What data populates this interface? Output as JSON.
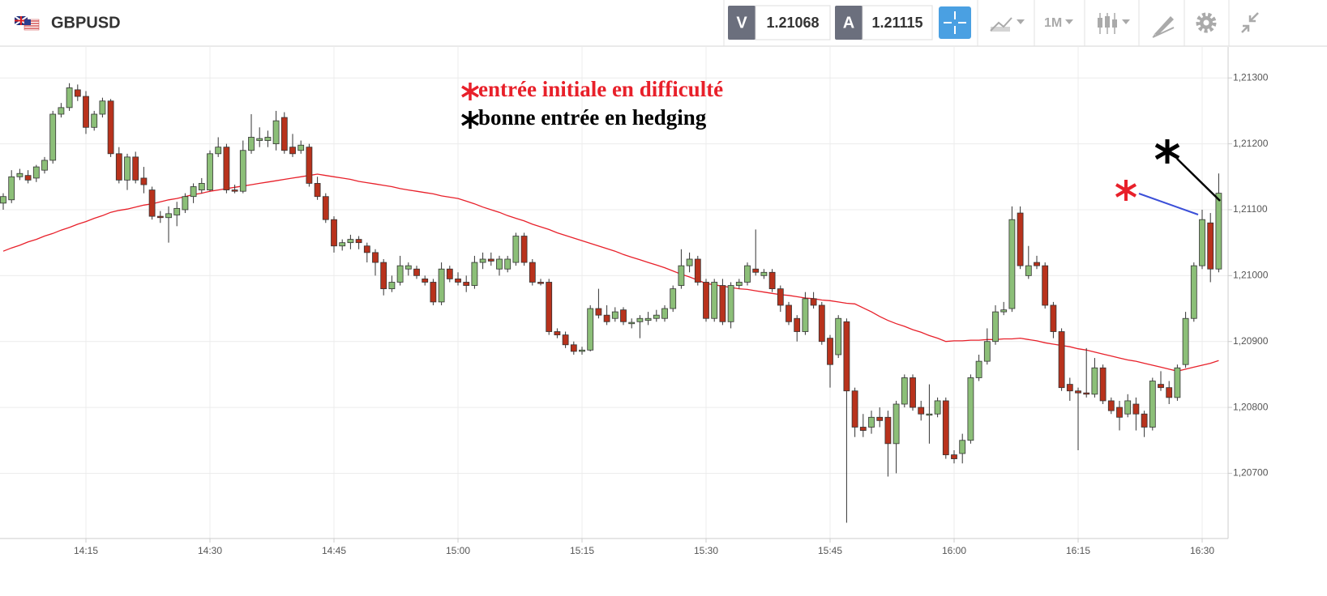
{
  "toolbar": {
    "symbol": "GBPUSD",
    "bid_tag": "V",
    "bid": "1.21068",
    "ask_tag": "A",
    "ask": "1.21115",
    "timeframe": "1M"
  },
  "chart_data": {
    "type": "candlestick",
    "annotations": [
      {
        "text": "entrée initiale en difficulté",
        "color": "#e8202a"
      },
      {
        "text": "bonne entrée en hedging",
        "color": "#000000"
      }
    ],
    "up_color": "#8cbf78",
    "down_color": "#b8321c",
    "ylim": [
      1.20601,
      1.21347
    ],
    "yticks": [
      {
        "value": 1.207,
        "label": "1,20700"
      },
      {
        "value": 1.208,
        "label": "1,20800"
      },
      {
        "value": 1.209,
        "label": "1,20900"
      },
      {
        "value": 1.21,
        "label": "1,21000"
      },
      {
        "value": 1.211,
        "label": "1,21100"
      },
      {
        "value": 1.212,
        "label": "1,21200"
      },
      {
        "value": 1.213,
        "label": "1,21300"
      }
    ],
    "grid": true,
    "categories": [
      null,
      null,
      null,
      null,
      null,
      null,
      null,
      null,
      null,
      null,
      "14:15",
      null,
      null,
      null,
      null,
      null,
      null,
      null,
      null,
      null,
      null,
      null,
      null,
      null,
      null,
      "14:30",
      null,
      null,
      null,
      null,
      null,
      null,
      null,
      null,
      null,
      null,
      null,
      null,
      null,
      null,
      "14:45",
      null,
      null,
      null,
      null,
      null,
      null,
      null,
      null,
      null,
      null,
      null,
      null,
      null,
      null,
      "15:00",
      null,
      null,
      null,
      null,
      null,
      null,
      null,
      null,
      null,
      null,
      null,
      null,
      null,
      null,
      "15:15",
      null,
      null,
      null,
      null,
      null,
      null,
      null,
      null,
      null,
      null,
      null,
      null,
      null,
      null,
      "15:30",
      null,
      null,
      null,
      null,
      null,
      null,
      null,
      null,
      null,
      null,
      null,
      null,
      null,
      null,
      "15:45",
      null,
      null,
      null,
      null,
      null,
      null,
      null,
      null,
      null,
      null,
      null,
      null,
      null,
      null,
      "16:00",
      null,
      null,
      null,
      null,
      null,
      null,
      null,
      null,
      null,
      null,
      null,
      null,
      null,
      null,
      "16:15",
      null,
      null,
      null,
      null,
      null,
      null,
      null,
      null,
      null,
      null,
      null,
      null,
      null,
      null,
      "16:30",
      null,
      null
    ],
    "ohlc": [
      [
        1.2111,
        1.21125,
        1.211,
        1.2112
      ],
      [
        1.21115,
        1.2116,
        1.2111,
        1.2115
      ],
      [
        1.2115,
        1.21162,
        1.21145,
        1.21155
      ],
      [
        1.21152,
        1.2116,
        1.2114,
        1.21145
      ],
      [
        1.21148,
        1.21168,
        1.21142,
        1.21165
      ],
      [
        1.2116,
        1.2118,
        1.21155,
        1.21175
      ],
      [
        1.21175,
        1.2125,
        1.2117,
        1.21245
      ],
      [
        1.21245,
        1.21262,
        1.2124,
        1.21255
      ],
      [
        1.21255,
        1.21292,
        1.2125,
        1.21285
      ],
      [
        1.21282,
        1.2129,
        1.21265,
        1.21272
      ],
      [
        1.21272,
        1.2128,
        1.21215,
        1.21225
      ],
      [
        1.21225,
        1.2125,
        1.2122,
        1.21245
      ],
      [
        1.21245,
        1.2127,
        1.2124,
        1.21265
      ],
      [
        1.21265,
        1.21268,
        1.2118,
        1.21185
      ],
      [
        1.21185,
        1.21195,
        1.2114,
        1.21145
      ],
      [
        1.21145,
        1.21185,
        1.2113,
        1.2118
      ],
      [
        1.2118,
        1.21188,
        1.2114,
        1.21145
      ],
      [
        1.21148,
        1.21165,
        1.21125,
        1.21138
      ],
      [
        1.2113,
        1.21135,
        1.21085,
        1.2109
      ],
      [
        1.2109,
        1.21098,
        1.2108,
        1.21088
      ],
      [
        1.21088,
        1.21105,
        1.2105,
        1.21094
      ],
      [
        1.21092,
        1.21112,
        1.21075,
        1.21102
      ],
      [
        1.211,
        1.21125,
        1.21095,
        1.2112
      ],
      [
        1.2112,
        1.2114,
        1.2111,
        1.21135
      ],
      [
        1.2113,
        1.21148,
        1.21125,
        1.2114
      ],
      [
        1.2113,
        1.2119,
        1.21128,
        1.21185
      ],
      [
        1.21185,
        1.2121,
        1.2118,
        1.21195
      ],
      [
        1.21195,
        1.212,
        1.21125,
        1.2113
      ],
      [
        1.2113,
        1.21138,
        1.21125,
        1.21128
      ],
      [
        1.21128,
        1.21205,
        1.21125,
        1.2119
      ],
      [
        1.2119,
        1.21245,
        1.21185,
        1.2121
      ],
      [
        1.21205,
        1.21225,
        1.21195,
        1.21208
      ],
      [
        1.21205,
        1.2122,
        1.21195,
        1.2121
      ],
      [
        1.212,
        1.2125,
        1.2119,
        1.21235
      ],
      [
        1.2124,
        1.21248,
        1.21185,
        1.2119
      ],
      [
        1.21195,
        1.21215,
        1.2118,
        1.21185
      ],
      [
        1.2119,
        1.21205,
        1.21185,
        1.21198
      ],
      [
        1.21195,
        1.212,
        1.21135,
        1.2114
      ],
      [
        1.2114,
        1.2115,
        1.21115,
        1.2112
      ],
      [
        1.2112,
        1.21125,
        1.2108,
        1.21085
      ],
      [
        1.21085,
        1.2109,
        1.21035,
        1.21045
      ],
      [
        1.21045,
        1.21055,
        1.21038,
        1.2105
      ],
      [
        1.2105,
        1.21062,
        1.2104,
        1.21055
      ],
      [
        1.21055,
        1.2106,
        1.2104,
        1.2105
      ],
      [
        1.21045,
        1.2105,
        1.2102,
        1.21035
      ],
      [
        1.21035,
        1.2104,
        1.21,
        1.2102
      ],
      [
        1.2102,
        1.21025,
        1.2097,
        1.2098
      ],
      [
        1.2098,
        1.21,
        1.20975,
        1.2099
      ],
      [
        1.2099,
        1.2103,
        1.20985,
        1.21015
      ],
      [
        1.2101,
        1.2102,
        1.21,
        1.21015
      ],
      [
        1.2101,
        1.21015,
        1.20995,
        1.21
      ],
      [
        1.20995,
        1.21,
        1.20985,
        1.2099
      ],
      [
        1.2099,
        1.20995,
        1.20955,
        1.2096
      ],
      [
        1.2096,
        1.2102,
        1.20955,
        1.2101
      ],
      [
        1.2101,
        1.21015,
        1.2099,
        1.20995
      ],
      [
        1.20995,
        1.21005,
        1.20985,
        1.2099
      ],
      [
        1.2099,
        1.21,
        1.20975,
        1.20985
      ],
      [
        1.20985,
        1.2103,
        1.2098,
        1.2102
      ],
      [
        1.2102,
        1.21035,
        1.2101,
        1.21025
      ],
      [
        1.21025,
        1.21035,
        1.21015,
        1.21022
      ],
      [
        1.2101,
        1.2103,
        1.21,
        1.21025
      ],
      [
        1.2101,
        1.2103,
        1.21005,
        1.21025
      ],
      [
        1.2102,
        1.21065,
        1.21015,
        1.2106
      ],
      [
        1.2106,
        1.21065,
        1.21015,
        1.2102
      ],
      [
        1.2102,
        1.21025,
        1.20985,
        1.2099
      ],
      [
        1.2099,
        1.20995,
        1.20985,
        1.20988
      ],
      [
        1.2099,
        1.20995,
        1.2091,
        1.20915
      ],
      [
        1.20915,
        1.2092,
        1.20905,
        1.2091
      ],
      [
        1.2091,
        1.20915,
        1.2089,
        1.20895
      ],
      [
        1.20895,
        1.209,
        1.2088,
        1.20885
      ],
      [
        1.20885,
        1.20892,
        1.2088,
        1.20887
      ],
      [
        1.20887,
        1.20955,
        1.20885,
        1.2095
      ],
      [
        1.2095,
        1.2098,
        1.20935,
        1.2094
      ],
      [
        1.2094,
        1.20955,
        1.20925,
        1.2093
      ],
      [
        1.20935,
        1.20952,
        1.2093,
        1.20945
      ],
      [
        1.20948,
        1.20952,
        1.20925,
        1.2093
      ],
      [
        1.20927,
        1.20935,
        1.2092,
        1.20929
      ],
      [
        1.2093,
        1.2094,
        1.20905,
        1.20935
      ],
      [
        1.20932,
        1.20945,
        1.20925,
        1.20935
      ],
      [
        1.20935,
        1.20948,
        1.2093,
        1.2094
      ],
      [
        1.20935,
        1.20955,
        1.2093,
        1.2095
      ],
      [
        1.2095,
        1.20985,
        1.20945,
        1.2098
      ],
      [
        1.20985,
        1.2104,
        1.2098,
        1.21015
      ],
      [
        1.21015,
        1.21035,
        1.21005,
        1.21025
      ],
      [
        1.21025,
        1.2103,
        1.20985,
        1.2099
      ],
      [
        1.2099,
        1.20995,
        1.2093,
        1.20935
      ],
      [
        1.20935,
        1.20995,
        1.2093,
        1.2099
      ],
      [
        1.20985,
        1.20995,
        1.20925,
        1.2093
      ],
      [
        1.2093,
        1.2099,
        1.2092,
        1.20985
      ],
      [
        1.20985,
        1.20995,
        1.2098,
        1.2099
      ],
      [
        1.2099,
        1.2102,
        1.20985,
        1.21015
      ],
      [
        1.2101,
        1.2107,
        1.21,
        1.21005
      ],
      [
        1.21,
        1.2101,
        1.20995,
        1.21005
      ],
      [
        1.21005,
        1.2101,
        1.20975,
        1.2098
      ],
      [
        1.2098,
        1.20985,
        1.20945,
        1.20955
      ],
      [
        1.20955,
        1.2096,
        1.20925,
        1.2093
      ],
      [
        1.20935,
        1.2094,
        1.209,
        1.20915
      ],
      [
        1.20915,
        1.20975,
        1.2091,
        1.20965
      ],
      [
        1.20965,
        1.20975,
        1.2095,
        1.20955
      ],
      [
        1.20955,
        1.2096,
        1.20895,
        1.209
      ],
      [
        1.20905,
        1.2091,
        1.2083,
        1.20865
      ],
      [
        1.2088,
        1.2094,
        1.20875,
        1.20935
      ],
      [
        1.2093,
        1.20935,
        1.20625,
        1.20825
      ],
      [
        1.20825,
        1.2083,
        1.20755,
        1.2077
      ],
      [
        1.2077,
        1.2079,
        1.20755,
        1.20765
      ],
      [
        1.2077,
        1.20795,
        1.2076,
        1.20785
      ],
      [
        1.20785,
        1.208,
        1.2077,
        1.2078
      ],
      [
        1.20785,
        1.20795,
        1.20695,
        1.20745
      ],
      [
        1.20745,
        1.2081,
        1.207,
        1.20805
      ],
      [
        1.20805,
        1.2085,
        1.208,
        1.20845
      ],
      [
        1.20845,
        1.2085,
        1.20795,
        1.208
      ],
      [
        1.208,
        1.2081,
        1.2078,
        1.2079
      ],
      [
        1.2079,
        1.20835,
        1.20745,
        1.2079
      ],
      [
        1.2079,
        1.20815,
        1.20785,
        1.2081
      ],
      [
        1.2081,
        1.20815,
        1.20722,
        1.20728
      ],
      [
        1.20728,
        1.20735,
        1.20715,
        1.20722
      ],
      [
        1.2073,
        1.2076,
        1.20715,
        1.2075
      ],
      [
        1.2075,
        1.2085,
        1.20745,
        1.20845
      ],
      [
        1.20845,
        1.2088,
        1.2084,
        1.2087
      ],
      [
        1.2087,
        1.2092,
        1.20865,
        1.209
      ],
      [
        1.209,
        1.20955,
        1.20895,
        1.20945
      ],
      [
        1.20945,
        1.2096,
        1.2094,
        1.20948
      ],
      [
        1.2095,
        1.21105,
        1.20945,
        1.21085
      ],
      [
        1.21095,
        1.21105,
        1.2101,
        1.21015
      ],
      [
        1.21,
        1.21045,
        1.20995,
        1.21015
      ],
      [
        1.2102,
        1.2103,
        1.2101,
        1.21015
      ],
      [
        1.21015,
        1.2102,
        1.2095,
        1.20955
      ],
      [
        1.20955,
        1.2096,
        1.20905,
        1.20915
      ],
      [
        1.20915,
        1.2092,
        1.20825,
        1.2083
      ],
      [
        1.20835,
        1.20845,
        1.2081,
        1.20825
      ],
      [
        1.20825,
        1.2083,
        1.20735,
        1.20822
      ],
      [
        1.20822,
        1.2089,
        1.20815,
        1.2082
      ],
      [
        1.2082,
        1.20875,
        1.20815,
        1.2086
      ],
      [
        1.2086,
        1.20865,
        1.20805,
        1.2081
      ],
      [
        1.2081,
        1.20815,
        1.2079,
        1.20795
      ],
      [
        1.208,
        1.2081,
        1.20765,
        1.20785
      ],
      [
        1.2079,
        1.2082,
        1.20785,
        1.2081
      ],
      [
        1.20805,
        1.20815,
        1.20765,
        1.2079
      ],
      [
        1.2079,
        1.20795,
        1.20755,
        1.2077
      ],
      [
        1.2077,
        1.20845,
        1.20765,
        1.2084
      ],
      [
        1.20835,
        1.20855,
        1.20825,
        1.2083
      ],
      [
        1.2083,
        1.2084,
        1.20805,
        1.20815
      ],
      [
        1.20815,
        1.20865,
        1.2081,
        1.2086
      ],
      [
        1.20865,
        1.20945,
        1.2086,
        1.20935
      ],
      [
        1.20935,
        1.2102,
        1.2093,
        1.21015
      ],
      [
        1.21015,
        1.211,
        1.2101,
        1.21085
      ],
      [
        1.2108,
        1.21095,
        1.2099,
        1.2101
      ],
      [
        1.2101,
        1.21155,
        1.21005,
        1.21125
      ]
    ],
    "ma": {
      "color": "#e8202a",
      "values": [
        1.21037,
        1.21042,
        1.21046,
        1.21051,
        1.21055,
        1.2106,
        1.21064,
        1.21069,
        1.21073,
        1.21078,
        1.21082,
        1.21087,
        1.21091,
        1.21096,
        1.21099,
        1.21101,
        1.21104,
        1.21107,
        1.21109,
        1.21112,
        1.21115,
        1.21117,
        1.2112,
        1.21123,
        1.21125,
        1.21128,
        1.2113,
        1.21132,
        1.21134,
        1.21136,
        1.21138,
        1.2114,
        1.21142,
        1.21144,
        1.21146,
        1.21148,
        1.2115,
        1.21152,
        1.21154,
        1.21152,
        1.2115,
        1.21148,
        1.21146,
        1.21143,
        1.21141,
        1.21139,
        1.21137,
        1.21135,
        1.21132,
        1.2113,
        1.21128,
        1.21126,
        1.21124,
        1.21121,
        1.21119,
        1.21117,
        1.21113,
        1.21109,
        1.21104,
        1.211,
        1.21096,
        1.21091,
        1.21087,
        1.21083,
        1.21078,
        1.21074,
        1.2107,
        1.21065,
        1.21061,
        1.21057,
        1.21053,
        1.21049,
        1.21045,
        1.21041,
        1.21037,
        1.21032,
        1.21028,
        1.21024,
        1.2102,
        1.21016,
        1.21012,
        1.21007,
        1.21002,
        1.20998,
        1.20993,
        1.20988,
        1.20986,
        1.20984,
        1.20982,
        1.2098,
        1.20979,
        1.20977,
        1.20975,
        1.20973,
        1.20971,
        1.2097,
        1.20968,
        1.20966,
        1.20965,
        1.20963,
        1.20962,
        1.2096,
        1.20958,
        1.20957,
        1.20951,
        1.20945,
        1.20938,
        1.20932,
        1.20927,
        1.20923,
        1.20918,
        1.20914,
        1.20909,
        1.20905,
        1.209,
        1.20901,
        1.20901,
        1.20902,
        1.20902,
        1.20903,
        1.20903,
        1.20904,
        1.20904,
        1.20905,
        1.20903,
        1.20901,
        1.20898,
        1.20896,
        1.20894,
        1.20892,
        1.20889,
        1.20887,
        1.20884,
        1.20881,
        1.20878,
        1.20875,
        1.20872,
        1.2087,
        1.20867,
        1.20864,
        1.20861,
        1.20858,
        1.20855,
        1.20858,
        1.20861,
        1.20864,
        1.20867,
        1.20871
      ]
    }
  }
}
